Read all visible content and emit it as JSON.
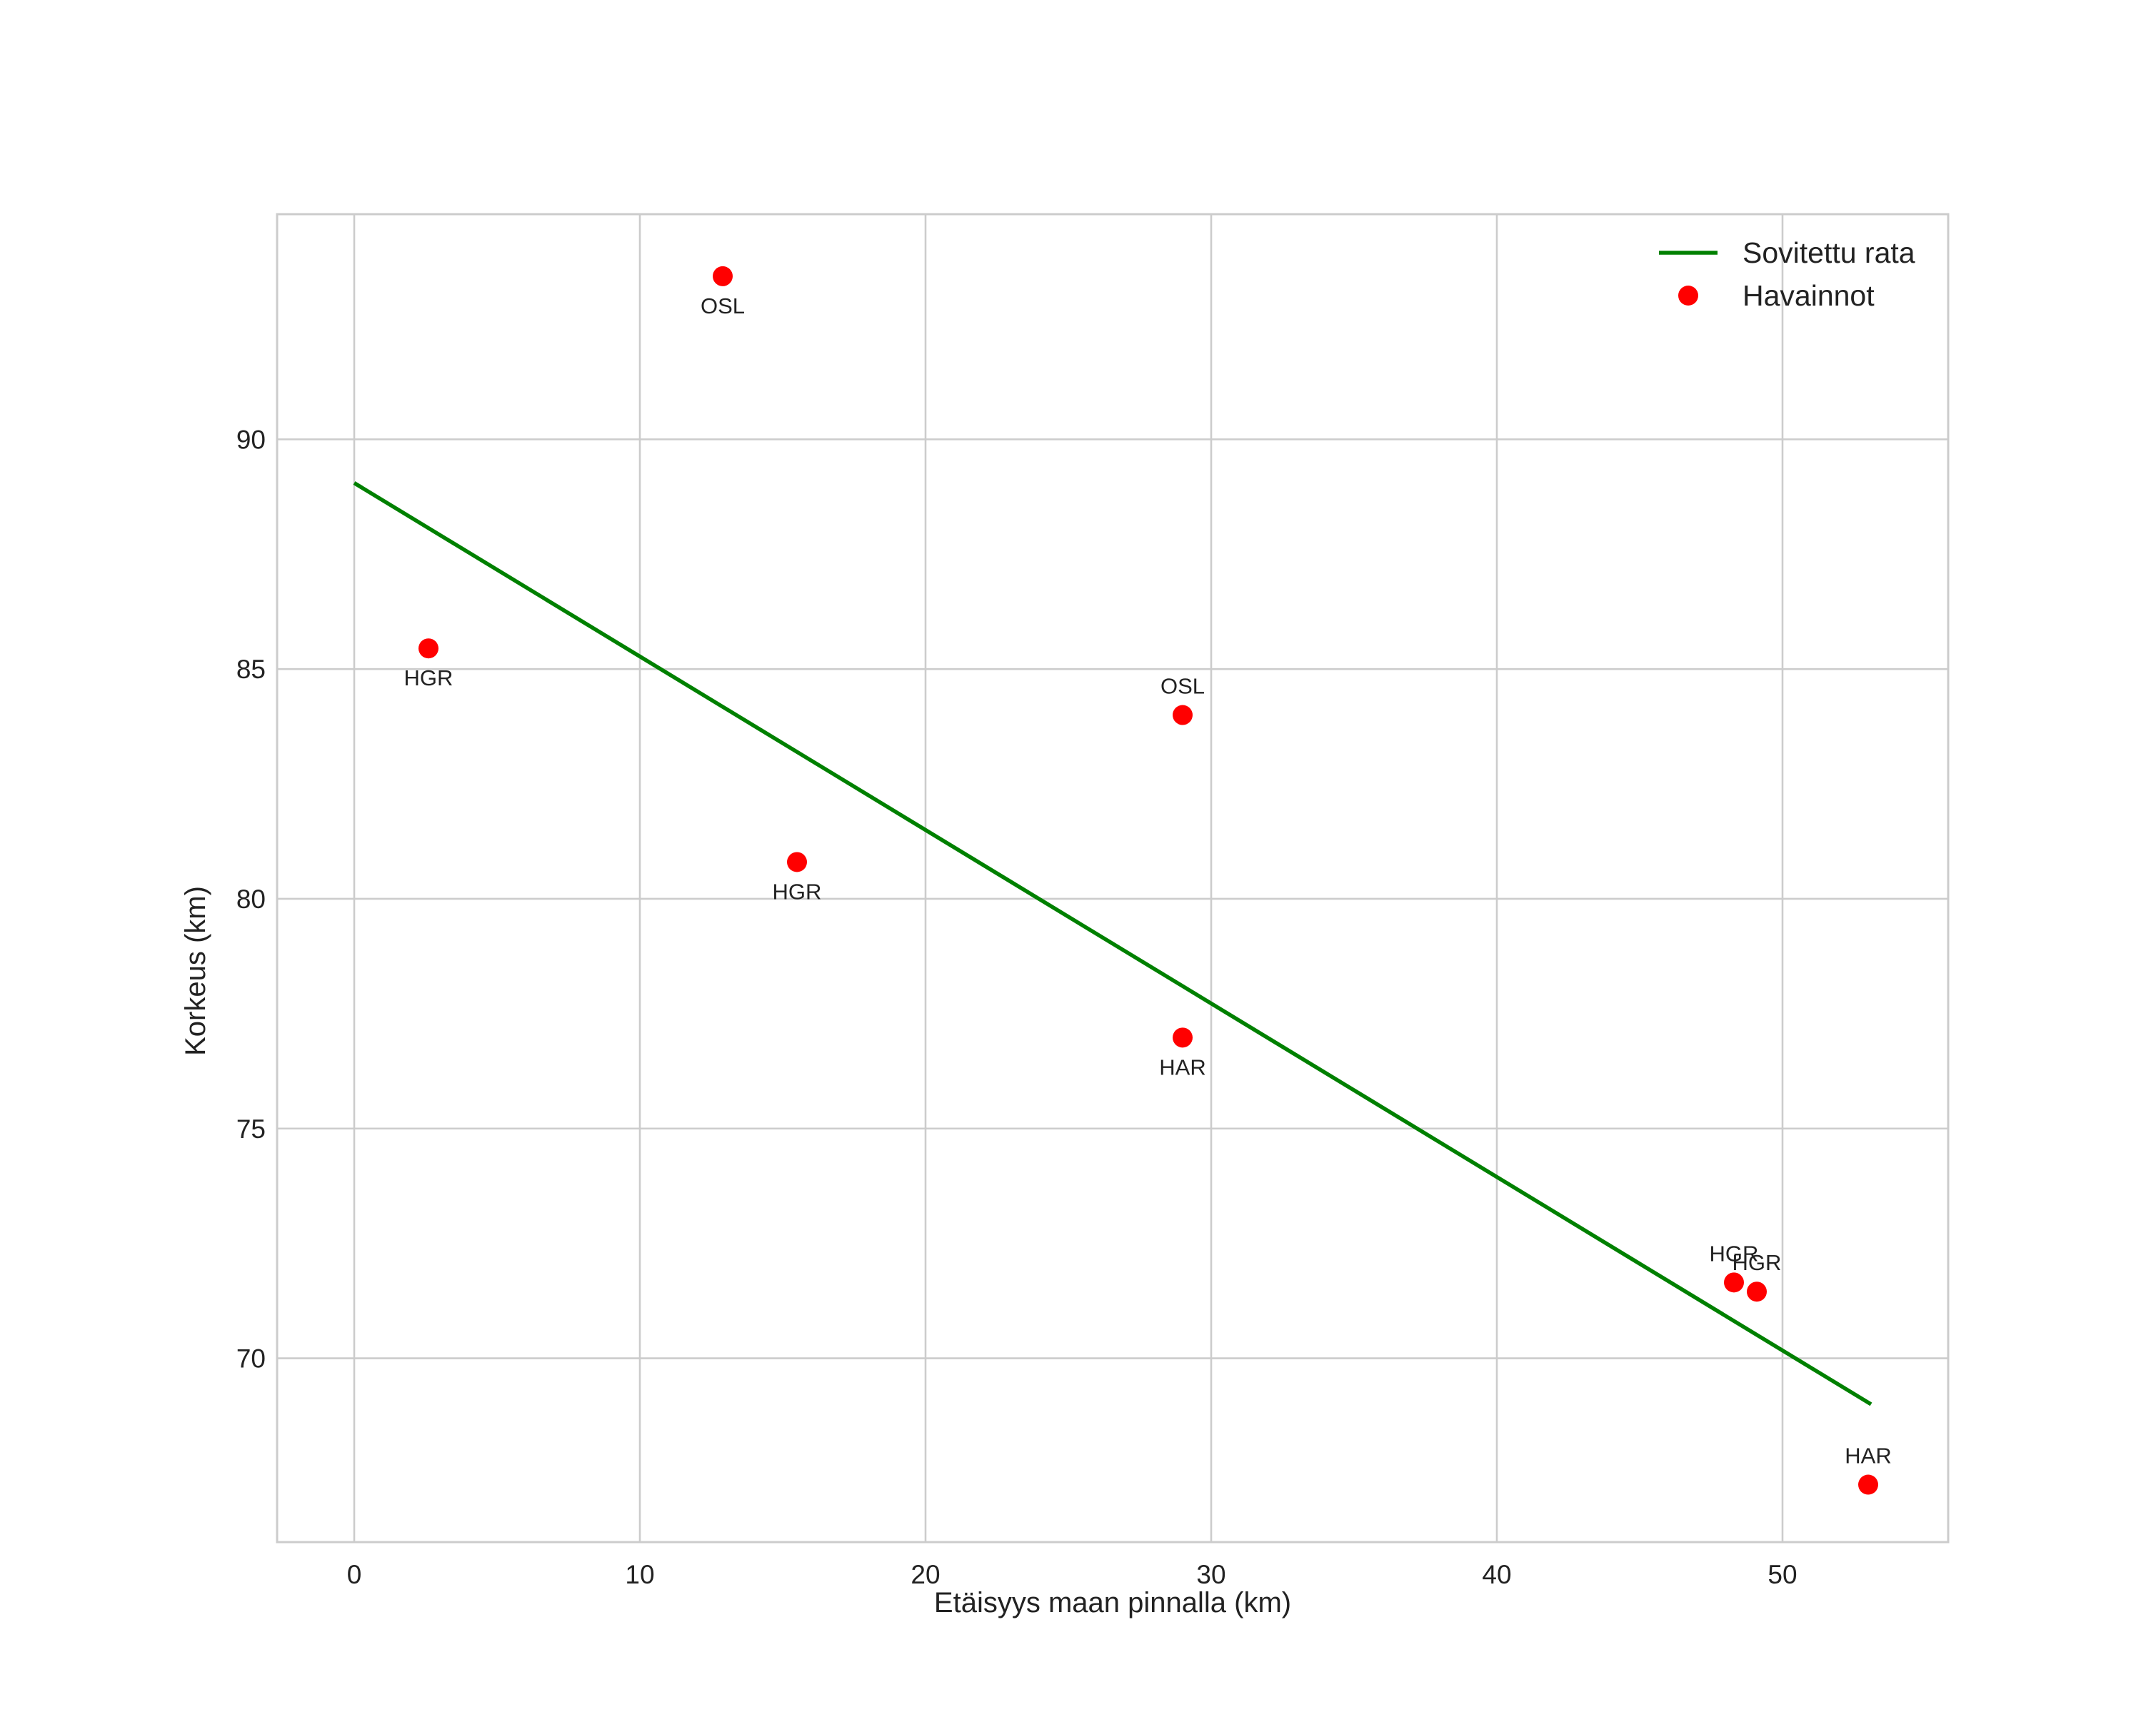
{
  "chart_data": {
    "type": "scatter",
    "title": "",
    "xlabel": "Etäisyys maan pinnalla (km)",
    "ylabel": "Korkeus (km)",
    "xlim": [
      -2.7,
      55.8
    ],
    "ylim": [
      66.0,
      94.9
    ],
    "xticks": [
      0,
      10,
      20,
      30,
      40,
      50
    ],
    "yticks": [
      70,
      75,
      80,
      85,
      90
    ],
    "grid": true,
    "legend_position": "top-right",
    "series": [
      {
        "name": "Sovitettu rata",
        "kind": "line",
        "color": "#008000",
        "x": [
          0,
          53.1
        ],
        "y": [
          89.05,
          69.0
        ]
      },
      {
        "name": "Havainnot",
        "kind": "scatter",
        "color": "#ff0000",
        "points": [
          {
            "x": 12.9,
            "y": 93.55,
            "label": "OSL",
            "label_pos": "below"
          },
          {
            "x": 2.6,
            "y": 85.45,
            "label": "HGR",
            "label_pos": "below"
          },
          {
            "x": 29.0,
            "y": 84.0,
            "label": "OSL",
            "label_pos": "above"
          },
          {
            "x": 15.5,
            "y": 80.8,
            "label": "HGR",
            "label_pos": "below"
          },
          {
            "x": 29.0,
            "y": 76.98,
            "label": "HAR",
            "label_pos": "below"
          },
          {
            "x": 48.3,
            "y": 71.65,
            "label": "HGR",
            "label_pos": "above"
          },
          {
            "x": 49.1,
            "y": 71.45,
            "label": "HGR",
            "label_pos": "above"
          },
          {
            "x": 53.0,
            "y": 67.25,
            "label": "HAR",
            "label_pos": "above"
          }
        ]
      }
    ]
  }
}
